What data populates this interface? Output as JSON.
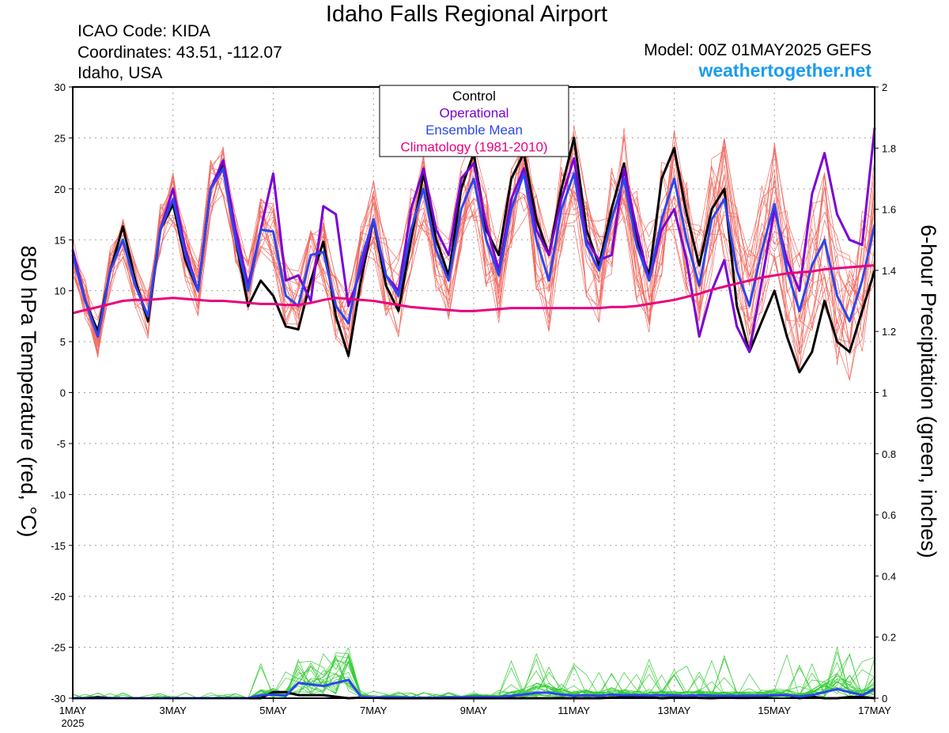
{
  "header": {
    "title": "Idaho Falls Regional Airport",
    "icao": "ICAO Code: KIDA",
    "coordinates": "Coordinates: 43.51, -112.07",
    "region": "Idaho, USA",
    "model": "Model: 00Z 01MAY2025 GEFS",
    "site": "weathertogether.net"
  },
  "colors": {
    "control": "#000000",
    "operational": "#7a00d6",
    "ensemble_mean": "#2b46f0",
    "climatology": "#e8007e",
    "members_temp": "#f06a60",
    "members_precip": "#33cc33",
    "site": "#1a9cf0"
  },
  "chart_data": {
    "type": "line",
    "ylabel": "850 hPa Temperature (red, °C)",
    "y2label": "6-hour Precipitation (green, inches)",
    "ylim": [
      -30,
      30
    ],
    "y2lim": [
      0,
      2
    ],
    "yticks": [
      30,
      25,
      20,
      15,
      10,
      5,
      0,
      -5,
      -10,
      -15,
      -20,
      -25,
      -30
    ],
    "y2ticks": [
      2,
      1.8,
      1.6,
      1.4,
      1.2,
      1,
      0.8,
      0.6,
      0.4,
      0.2,
      0
    ],
    "xlim_days": [
      0,
      16
    ],
    "x_step_hours": 6,
    "xticks": [
      {
        "day": 0,
        "label": "1MAY",
        "sub": "2025"
      },
      {
        "day": 2,
        "label": "3MAY"
      },
      {
        "day": 4,
        "label": "5MAY"
      },
      {
        "day": 6,
        "label": "7MAY"
      },
      {
        "day": 8,
        "label": "9MAY"
      },
      {
        "day": 10,
        "label": "11MAY"
      },
      {
        "day": 12,
        "label": "13MAY"
      },
      {
        "day": 14,
        "label": "15MAY"
      },
      {
        "day": 16,
        "label": "17MAY"
      }
    ],
    "grid": true,
    "legend": {
      "position": "top-center",
      "entries": [
        "Control",
        "Operational",
        "Ensemble Mean",
        "Climatology (1981-2010)"
      ]
    },
    "series": [
      {
        "name": "Control",
        "axis": "temp",
        "values": [
          14,
          9,
          6,
          12,
          16.3,
          11,
          7,
          16,
          18.5,
          13,
          10,
          20,
          22.5,
          15,
          8.5,
          11,
          9.5,
          6.5,
          6.2,
          11,
          14.8,
          7.5,
          3.6,
          11,
          17,
          10.5,
          8,
          15,
          21.5,
          15,
          11.5,
          20,
          23.5,
          16,
          13.5,
          21,
          23.5,
          17,
          13.5,
          20,
          25,
          16,
          12.5,
          18,
          22.5,
          15,
          11.5,
          21,
          24,
          17.5,
          12.5,
          18,
          20,
          8.5,
          4,
          7,
          10,
          5.5,
          2,
          4,
          9,
          5,
          4,
          8,
          12
        ]
      },
      {
        "name": "Operational",
        "axis": "temp",
        "values": [
          14,
          9,
          5.5,
          12,
          15,
          10.5,
          7.5,
          16,
          20,
          14,
          10,
          20,
          22.8,
          16,
          10.5,
          16,
          21.5,
          11,
          11.5,
          9,
          18.3,
          17.5,
          8.5,
          12,
          17,
          11.5,
          10,
          18,
          22,
          16,
          13.5,
          21,
          22.5,
          16.5,
          12,
          19,
          22,
          16,
          13.5,
          19,
          23,
          15,
          13,
          13.5,
          22,
          16,
          11,
          16,
          18,
          13,
          5.5,
          10,
          13,
          6.5,
          4,
          11,
          18,
          13,
          10,
          19.5,
          23.5,
          17.5,
          15,
          14.5,
          26
        ]
      },
      {
        "name": "Ensemble Mean",
        "axis": "temp",
        "values": [
          13.5,
          9,
          5.5,
          12,
          15,
          10.5,
          7.5,
          16,
          19,
          13.5,
          10,
          20,
          22,
          15,
          10,
          16,
          15.8,
          9.5,
          8.5,
          13.5,
          13.8,
          8.5,
          6.8,
          13,
          17,
          11.5,
          9.5,
          16,
          20,
          14,
          11,
          18,
          21,
          15,
          11.5,
          18,
          21.5,
          15,
          11,
          18,
          21.5,
          14.5,
          12,
          17,
          21,
          14.5,
          11,
          17,
          21,
          15,
          10.5,
          17,
          19,
          12,
          8.5,
          14,
          18.5,
          12,
          8,
          12.5,
          15,
          9.5,
          7,
          11,
          16.5
        ]
      },
      {
        "name": "Climatology (1981-2010)",
        "axis": "temp",
        "values": [
          7.8,
          8.1,
          8.4,
          8.7,
          9.0,
          9.1,
          9.1,
          9.2,
          9.3,
          9.2,
          9.1,
          9.0,
          9.0,
          8.9,
          8.8,
          8.7,
          8.7,
          8.6,
          8.6,
          8.8,
          9.1,
          9.3,
          9.2,
          9.1,
          9.0,
          8.8,
          8.6,
          8.4,
          8.3,
          8.2,
          8.1,
          8.0,
          8.0,
          8.1,
          8.2,
          8.3,
          8.3,
          8.3,
          8.3,
          8.3,
          8.3,
          8.3,
          8.3,
          8.4,
          8.4,
          8.5,
          8.7,
          8.9,
          9.1,
          9.4,
          9.7,
          10.1,
          10.4,
          10.7,
          11.0,
          11.3,
          11.5,
          11.7,
          11.8,
          11.9,
          12.1,
          12.2,
          12.3,
          12.4,
          12.5
        ]
      },
      {
        "name": "Control",
        "axis": "precip",
        "values": [
          0,
          0,
          0.003,
          0,
          0,
          0,
          0,
          0,
          0,
          0,
          0,
          0,
          0,
          0,
          0,
          0,
          0.02,
          0.02,
          0.01,
          0.01,
          0.01,
          0.005,
          0,
          0.002,
          0.002,
          0,
          0,
          0,
          0,
          0,
          0,
          0,
          0,
          0,
          0,
          0,
          0,
          0,
          0,
          0,
          0,
          0,
          0,
          0.002,
          0.004,
          0.007,
          0.003,
          0,
          0.002,
          0.003,
          0.001,
          0,
          0.002,
          0.001,
          0.001,
          0.004,
          0.01,
          0.01,
          0,
          0.005,
          0,
          0,
          0.004,
          0.004,
          0
        ]
      },
      {
        "name": "Ensemble Mean",
        "axis": "precip",
        "values": [
          0,
          0,
          0,
          0,
          0,
          0,
          0,
          0,
          0,
          0,
          0,
          0,
          0,
          0,
          0,
          0.01,
          0.012,
          0.008,
          0.05,
          0.045,
          0.04,
          0.05,
          0.06,
          0.005,
          0.002,
          0.003,
          0.003,
          0.002,
          0.001,
          0.002,
          0.003,
          0.003,
          0.005,
          0.004,
          0.004,
          0.008,
          0.012,
          0.018,
          0.018,
          0.012,
          0.008,
          0.01,
          0.008,
          0.012,
          0.01,
          0.01,
          0.009,
          0.01,
          0.009,
          0.008,
          0.01,
          0.008,
          0.008,
          0.008,
          0.008,
          0.008,
          0.01,
          0.01,
          0.006,
          0.01,
          0.02,
          0.03,
          0.02,
          0.01,
          0.03
        ]
      }
    ]
  }
}
